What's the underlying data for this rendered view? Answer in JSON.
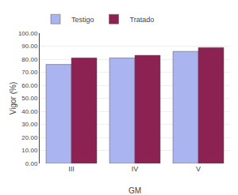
{
  "chart_data": {
    "type": "bar",
    "xlabel": "GM",
    "ylabel": "Vigor (%)",
    "categories": [
      "III",
      "IV",
      "V"
    ],
    "series": [
      {
        "name": "Testigo",
        "color": "#aab4ee",
        "values": [
          76.0,
          81.0,
          86.0
        ]
      },
      {
        "name": "Tratado",
        "color": "#8b2252",
        "values": [
          81.0,
          83.0,
          89.0
        ]
      }
    ],
    "ylim": [
      0,
      100
    ],
    "yticks": [
      {
        "value": 0,
        "label": "0.00"
      },
      {
        "value": 10,
        "label": "10.00"
      },
      {
        "value": 20,
        "label": "20.00"
      },
      {
        "value": 30,
        "label": "30.00"
      },
      {
        "value": 40,
        "label": "40.00"
      },
      {
        "value": 50,
        "label": "50.00"
      },
      {
        "value": 60,
        "label": "60.00"
      },
      {
        "value": 70,
        "label": "70.00"
      },
      {
        "value": 80,
        "label": "80.00"
      },
      {
        "value": 90,
        "label": "90.00"
      },
      {
        "value": 100,
        "label": "100.00"
      }
    ],
    "grid": true,
    "legend": "upper left"
  }
}
